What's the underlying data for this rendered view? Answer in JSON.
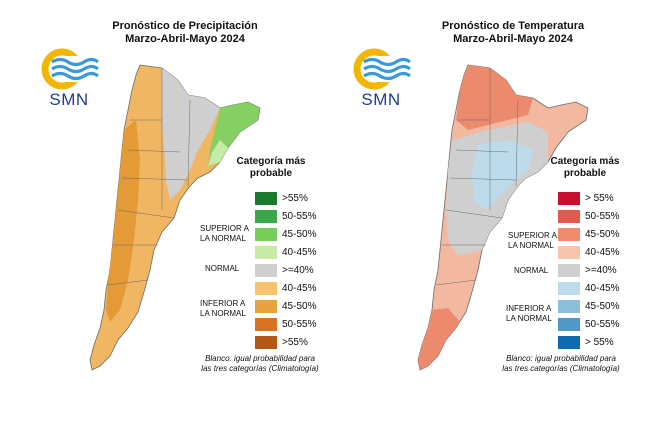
{
  "panels": [
    {
      "title_line1": "Pronóstico de Precipitación",
      "title_line2": "Marzo-Abril-Mayo 2024",
      "logo_text": "SMN",
      "legend_title_line1": "Categoría más",
      "legend_title_line2": "probable",
      "group_superior_line1": "SUPERIOR A",
      "group_superior_line2": "LA NORMAL",
      "group_normal": "NORMAL",
      "group_inferior_line1": "INFERIOR A",
      "group_inferior_line2": "LA NORMAL",
      "legend": [
        {
          "label": ">55%",
          "color": "#1a7a2e"
        },
        {
          "label": "50-55%",
          "color": "#3aa84a"
        },
        {
          "label": "45-50%",
          "color": "#78cc5a"
        },
        {
          "label": "40-45%",
          "color": "#c8eaa8"
        },
        {
          "label": ">=40%",
          "color": "#cfcfcf"
        },
        {
          "label": "40-45%",
          "color": "#f7c46e"
        },
        {
          "label": "45-50%",
          "color": "#e7a33d"
        },
        {
          "label": "50-55%",
          "color": "#d77320"
        },
        {
          "label": ">55%",
          "color": "#b4581a"
        }
      ],
      "footnote_line1": "Blanco: igual probabilidad para",
      "footnote_line2": "las tres categorías (Climatología)"
    },
    {
      "title_line1": "Pronóstico de Temperatura",
      "title_line2": "Marzo-Abril-Mayo 2024",
      "logo_text": "SMN",
      "legend_title_line1": "Categoría más",
      "legend_title_line2": "probable",
      "group_superior_line1": "SUPERIOR A",
      "group_superior_line2": "LA NORMAL",
      "group_normal": "NORMAL",
      "group_inferior_line1": "INFERIOR A",
      "group_inferior_line2": "LA NORMAL",
      "legend": [
        {
          "label": "> 55%",
          "color": "#c8102e"
        },
        {
          "label": "50-55%",
          "color": "#e05a4f"
        },
        {
          "label": "45-50%",
          "color": "#ef8c6e"
        },
        {
          "label": "40-45%",
          "color": "#f7c5ad"
        },
        {
          "label": ">=40%",
          "color": "#cfcfcf"
        },
        {
          "label": "40-45%",
          "color": "#bcdcec"
        },
        {
          "label": "45-50%",
          "color": "#8dbfdb"
        },
        {
          "label": "50-55%",
          "color": "#4f98c7"
        },
        {
          "label": "> 55%",
          "color": "#0f6aae"
        }
      ],
      "footnote_line1": "Blanco: igual probabilidad para",
      "footnote_line2": "las tres categorías (Climatología)"
    }
  ],
  "map_colors": {
    "precip_main": "#f0b661",
    "precip_dark": "#e39a37",
    "precip_gray": "#cfcfcf",
    "precip_green": "#86cf62",
    "precip_lightgreen": "#c8eaa8",
    "temp_main": "#f3b8a0",
    "temp_dark": "#eb8a6c",
    "temp_gray": "#cfcfcf",
    "temp_blue": "#bcdcec"
  }
}
